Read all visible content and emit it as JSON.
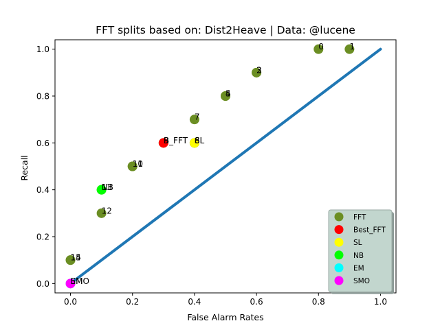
{
  "chart_data": {
    "type": "scatter",
    "title": "FFT splits based on: Dist2Heave  |  Data: @lucene",
    "xlabel": "False Alarm Rates",
    "ylabel": "Recall",
    "xlim": [
      -0.05,
      1.05
    ],
    "ylim": [
      -0.04,
      1.04
    ],
    "xticks": [
      "0.0",
      "0.2",
      "0.4",
      "0.6",
      "0.8",
      "1.0"
    ],
    "yticks": [
      "0.0",
      "0.2",
      "0.4",
      "0.6",
      "0.8",
      "1.0"
    ],
    "xtick_values": [
      0.0,
      0.2,
      0.4,
      0.6,
      0.8,
      1.0
    ],
    "ytick_values": [
      0.0,
      0.2,
      0.4,
      0.6,
      0.8,
      1.0
    ],
    "grid": false,
    "legend_placement": "lower-right",
    "diagonal": {
      "x": [
        0,
        1
      ],
      "y": [
        0,
        1
      ],
      "color": "#1f77b4"
    },
    "series": [
      {
        "name": "FFT",
        "color": "#6b8e23",
        "points": [
          {
            "x": 0.8,
            "y": 1.0,
            "label": "0"
          },
          {
            "x": 0.9,
            "y": 1.0,
            "label": "1"
          },
          {
            "x": 0.6,
            "y": 0.9,
            "label": "2"
          },
          {
            "x": 0.6,
            "y": 0.9,
            "label": "3"
          },
          {
            "x": 0.5,
            "y": 0.8,
            "label": "4"
          },
          {
            "x": 0.5,
            "y": 0.8,
            "label": "5"
          },
          {
            "x": 0.4,
            "y": 0.6,
            "label": "6"
          },
          {
            "x": 0.4,
            "y": 0.7,
            "label": "7"
          },
          {
            "x": 0.4,
            "y": 0.6,
            "label": "8"
          },
          {
            "x": 0.3,
            "y": 0.6,
            "label": "9"
          },
          {
            "x": 0.2,
            "y": 0.5,
            "label": "10"
          },
          {
            "x": 0.2,
            "y": 0.5,
            "label": "11"
          },
          {
            "x": 0.1,
            "y": 0.3,
            "label": "12"
          },
          {
            "x": 0.1,
            "y": 0.4,
            "label": "13"
          },
          {
            "x": 0.0,
            "y": 0.1,
            "label": "14"
          },
          {
            "x": 0.0,
            "y": 0.1,
            "label": "15"
          }
        ]
      },
      {
        "name": "Best_FFT",
        "color": "#ff0000",
        "points": [
          {
            "x": 0.3,
            "y": 0.6,
            "label": "B_FFT"
          }
        ]
      },
      {
        "name": "SL",
        "color": "#ffff00",
        "points": [
          {
            "x": 0.4,
            "y": 0.6,
            "label": "SL"
          }
        ]
      },
      {
        "name": "NB",
        "color": "#00ff00",
        "points": [
          {
            "x": 0.1,
            "y": 0.4,
            "label": "NB"
          }
        ]
      },
      {
        "name": "EM",
        "color": "#00ffff",
        "points": [
          {
            "x": 0.0,
            "y": 0.0,
            "label": "EM"
          }
        ]
      },
      {
        "name": "SMO",
        "color": "#ff00ff",
        "points": [
          {
            "x": 0.0,
            "y": 0.0,
            "label": "SMO"
          }
        ]
      }
    ]
  }
}
